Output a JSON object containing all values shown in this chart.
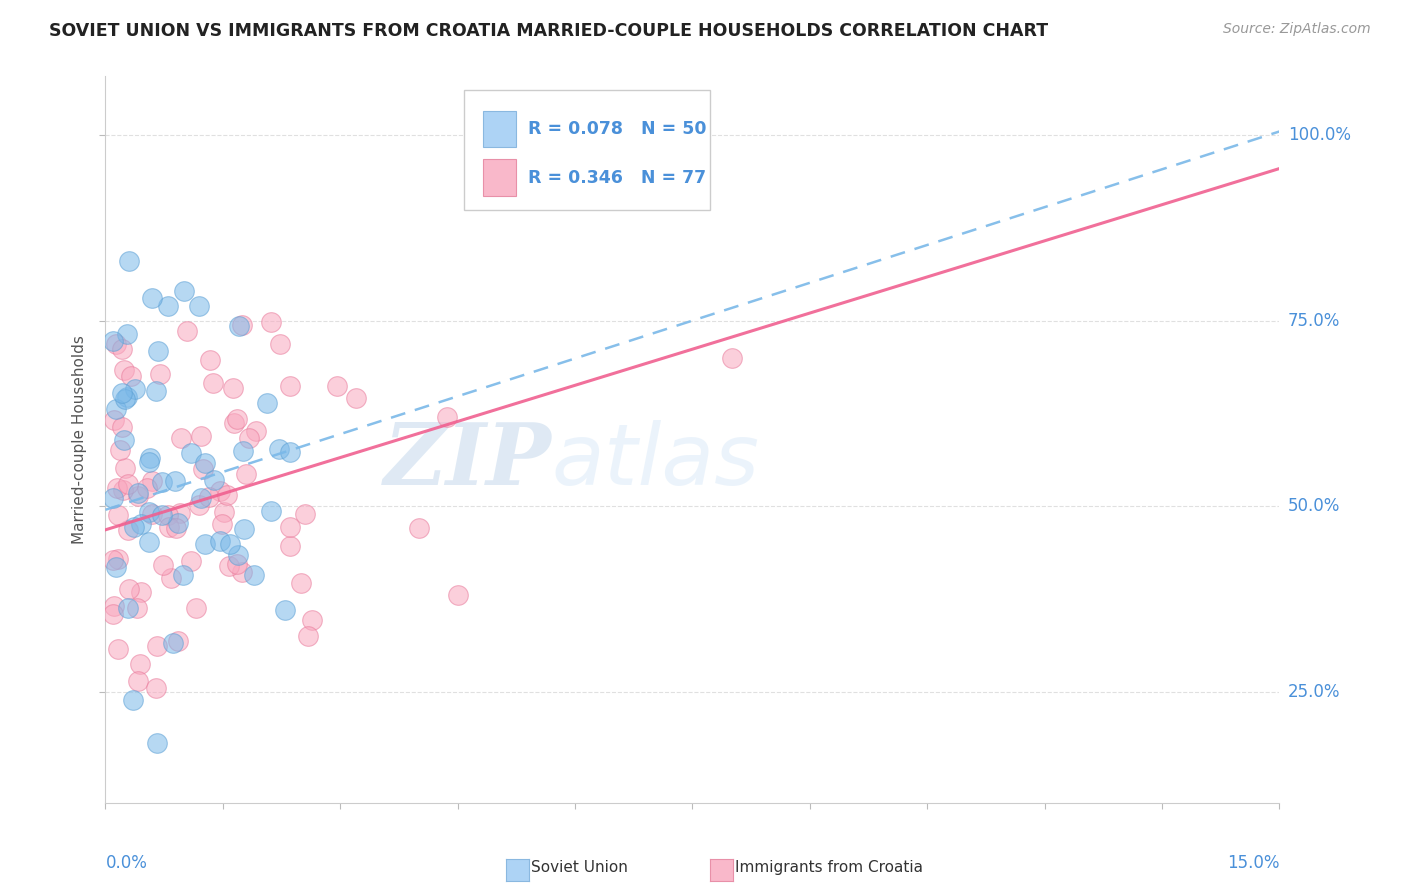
{
  "title": "SOVIET UNION VS IMMIGRANTS FROM CROATIA MARRIED-COUPLE HOUSEHOLDS CORRELATION CHART",
  "source": "Source: ZipAtlas.com",
  "ylabel": "Married-couple Households",
  "ytick_values": [
    0.25,
    0.5,
    0.75,
    1.0
  ],
  "ytick_labels": [
    "25.0%",
    "50.0%",
    "75.0%",
    "100.0%"
  ],
  "xlim": [
    0.0,
    0.15
  ],
  "ylim": [
    0.1,
    1.08
  ],
  "legend_r1": "R = 0.078   N = 50",
  "legend_r2": "R = 0.346   N = 77",
  "soviet_color": "#7ab8e8",
  "soviet_edge": "#5a9fd4",
  "croatia_color": "#f9a8bf",
  "croatia_edge": "#e8799a",
  "line_soviet_color": "#7ab8e8",
  "line_croatia_color": "#f06090",
  "legend_sq1": "#add3f5",
  "legend_sq2": "#f9b8ca",
  "legend_text_color": "#4a90d9",
  "axis_color": "#4a90d9",
  "watermark_zip": "#c8dff0",
  "watermark_atlas": "#b8d5ec",
  "background_color": "#ffffff",
  "grid_color": "#e0e0e0",
  "title_color": "#222222",
  "source_color": "#999999",
  "su_line_x0": 0.0,
  "su_line_y0": 0.495,
  "su_line_x1": 0.15,
  "su_line_y1": 1.005,
  "cr_line_x0": 0.0,
  "cr_line_y0": 0.468,
  "cr_line_x1": 0.15,
  "cr_line_y1": 0.955
}
